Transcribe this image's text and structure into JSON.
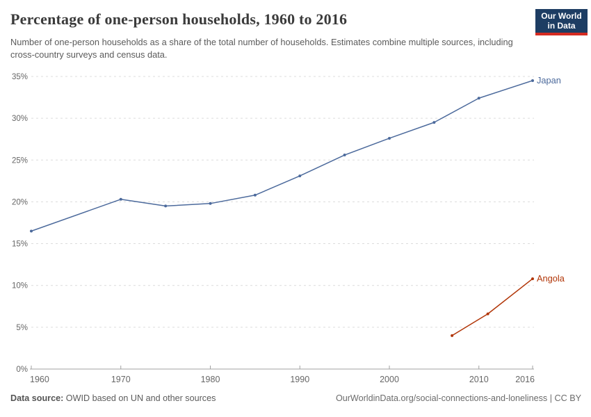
{
  "header": {
    "title": "Percentage of one-person households, 1960 to 2016",
    "subtitle": "Number of one-person households as a share of the total number of households. Estimates combine multiple sources, including cross-country surveys and census data.",
    "logo": {
      "line1": "Our World",
      "line2": "in Data",
      "bg_color": "#1d3d63",
      "accent_color": "#d42b21"
    }
  },
  "chart_data": {
    "type": "line",
    "title": "Percentage of one-person households, 1960 to 2016",
    "subtitle": "Number of one-person households as a share of the total number of households. Estimates combine multiple sources, including cross-country surveys and census data.",
    "xlabel": "",
    "ylabel": "",
    "xlim": [
      1960,
      2016
    ],
    "ylim": [
      0,
      35
    ],
    "x_ticks": [
      1960,
      1970,
      1980,
      1990,
      2000,
      2010,
      2016
    ],
    "y_ticks": [
      0,
      5,
      10,
      15,
      20,
      25,
      30,
      35
    ],
    "y_tick_suffix": "%",
    "grid": "horizontal-dashed",
    "grid_color": "#dcdcdc",
    "axis_color": "#a1a1a1",
    "tick_label_color": "#666666",
    "legend_position": "end-of-line-labels",
    "series": [
      {
        "name": "Japan",
        "color": "#4C6A9C",
        "x": [
          1960,
          1970,
          1975,
          1980,
          1985,
          1990,
          1995,
          2000,
          2005,
          2010,
          2016
        ],
        "values": [
          16.5,
          20.3,
          19.5,
          19.8,
          20.8,
          23.1,
          25.6,
          27.6,
          29.5,
          32.4,
          34.5
        ]
      },
      {
        "name": "Angola",
        "color": "#B13507",
        "x": [
          2007,
          2011,
          2016
        ],
        "values": [
          4.0,
          6.6,
          10.8
        ]
      }
    ]
  },
  "footer": {
    "data_source_label": "Data source:",
    "data_source_text": " OWID based on UN and other sources",
    "link_text": "OurWorldinData.org/social-connections-and-loneliness",
    "separator": " | ",
    "license": "CC BY"
  }
}
